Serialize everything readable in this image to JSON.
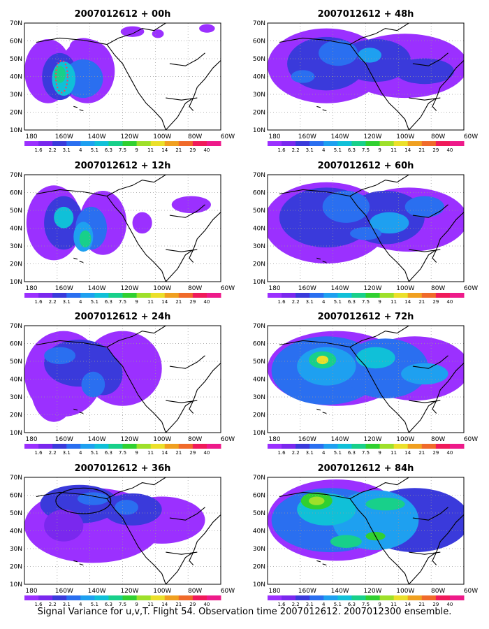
{
  "figure": {
    "caption": "Signal Variance for u,v,T. Flight 54. Observation time 2007012612. 2007012300 ensemble.",
    "lat_labels": [
      "70N",
      "60N",
      "50N",
      "40N",
      "30N",
      "20N",
      "10N"
    ],
    "lon_labels": [
      "180",
      "160W",
      "140W",
      "120W",
      "100W",
      "80W",
      "60W"
    ],
    "colorbar": {
      "labels": [
        "1.6",
        "2.2",
        "3.1",
        "4",
        "5.1",
        "6.3",
        "7.5",
        "9",
        "11",
        "14",
        "21",
        "29",
        "40"
      ],
      "colors": [
        "#9b30ff",
        "#7a28ee",
        "#3a3adb",
        "#2a6ff0",
        "#1ea0f0",
        "#10c0d8",
        "#18d08a",
        "#30d030",
        "#9ee02a",
        "#ebe02a",
        "#f0a020",
        "#f06a2a",
        "#f01a5a",
        "#ee1a8a"
      ]
    },
    "panels": [
      {
        "id": "p00",
        "title": "2007012612 + 00h"
      },
      {
        "id": "p48",
        "title": "2007012612 + 48h"
      },
      {
        "id": "p12",
        "title": "2007012612 + 12h"
      },
      {
        "id": "p60",
        "title": "2007012612 + 60h"
      },
      {
        "id": "p24",
        "title": "2007012612 + 24h"
      },
      {
        "id": "p72",
        "title": "2007012612 + 72h"
      },
      {
        "id": "p36",
        "title": "2007012612 + 36h"
      },
      {
        "id": "p84",
        "title": "2007012612 + 84h"
      }
    ]
  }
}
